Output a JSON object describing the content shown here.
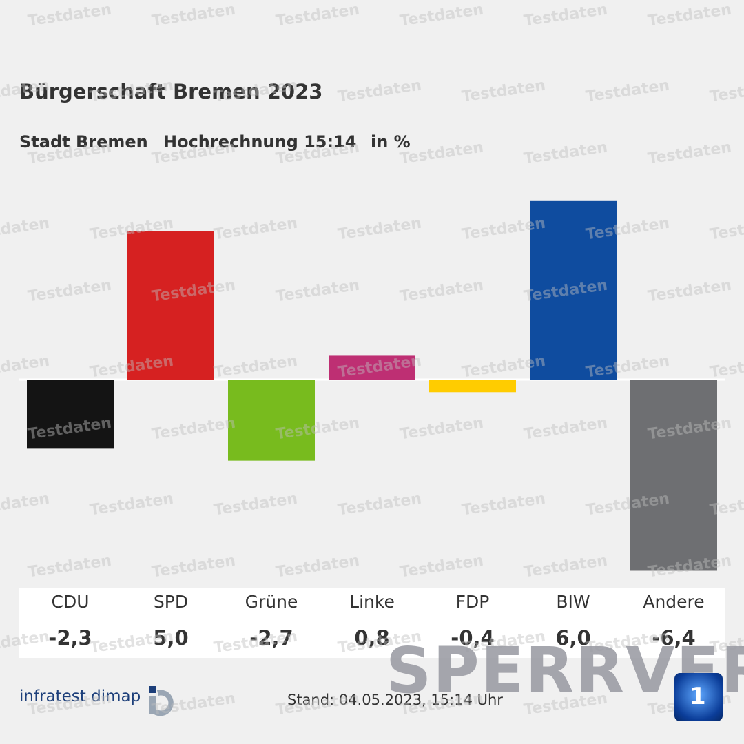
{
  "header": {
    "title": "Bürgerschaft Bremen 2023",
    "region": "Stadt Bremen",
    "status": "Hochrechnung 15:14",
    "unit": "in %"
  },
  "chart_data": {
    "type": "bar",
    "title": "Bürgerschaft Bremen 2023",
    "subtitle": "Stadt Bremen  Hochrechnung 15:14  in %",
    "categories": [
      "CDU",
      "SPD",
      "Grüne",
      "Linke",
      "FDP",
      "BIW",
      "Andere"
    ],
    "values": [
      -2.3,
      5.0,
      -2.7,
      0.8,
      -0.4,
      6.0,
      -6.4
    ],
    "value_labels": [
      "-2,3",
      "5,0",
      "-2,7",
      "0,8",
      "-0,4",
      "6,0",
      "-6,4"
    ],
    "colors": [
      "#141414",
      "#d62121",
      "#78bb1e",
      "#be2f73",
      "#ffcc00",
      "#0f4c9f",
      "#6e6f72"
    ],
    "xlabel": "",
    "ylabel": "",
    "ylim": [
      -6.4,
      6.0
    ],
    "grid": false
  },
  "footer": {
    "logo_text": "infratest dimap",
    "stand": "Stand:  04.05.2023, 15:14 Uhr"
  },
  "overlay": {
    "watermark": "Testdaten",
    "embargo": "SPERRVER",
    "channel_logo": "tagesschau 1"
  }
}
